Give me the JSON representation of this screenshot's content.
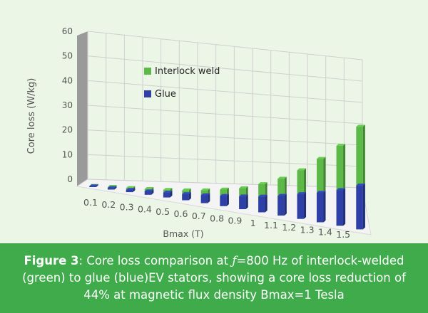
{
  "chart_data": {
    "type": "bar",
    "categories": [
      "0.1",
      "0.2",
      "0.3",
      "0.4",
      "0.5",
      "0.6",
      "0.7",
      "0.8",
      "0.9",
      "1",
      "1.1",
      "1.2",
      "1.3",
      "1.4",
      "1.5"
    ],
    "series": [
      {
        "name": "Glue",
        "values": [
          0.3,
          0.6,
          0.9,
          1.4,
          2.0,
          2.6,
          3.4,
          4.4,
          5.6,
          7.0,
          8.8,
          11.2,
          13.5,
          16.5,
          20.5
        ],
        "color": "#2f3fa8"
      },
      {
        "name": "Interlock weld",
        "values": [
          0.5,
          1.1,
          1.7,
          2.4,
          3.2,
          4.2,
          5.5,
          7.2,
          9.2,
          12.5,
          16.5,
          22.0,
          29.0,
          37.0,
          48.0
        ],
        "color": "#5cb847"
      }
    ],
    "stacking": "overlay",
    "ylim": [
      0,
      60
    ],
    "yticks": [
      "0",
      "10",
      "20",
      "30",
      "40",
      "50",
      "60"
    ],
    "ylabel": "Core loss (W/kg)",
    "xlabel": "Bmax (T)",
    "legend_position": "inside-top-left",
    "grid": true
  },
  "caption": {
    "label": "Figure 3",
    "text_before_f": ": Core loss comparison at ",
    "f_symbol": "ƒ",
    "text_after_f": "=800 Hz of interlock-welded (green) to glue (blue)EV stators, showing a core loss reduction of 44% at magnetic flux density Bmax=1 Tesla"
  },
  "colors": {
    "chart_background": "#ecf6e6",
    "caption_background": "#3fab4b",
    "caption_text": "#ffffff",
    "wall": "#9a9a9a",
    "gridline": "#cfcfcf"
  }
}
